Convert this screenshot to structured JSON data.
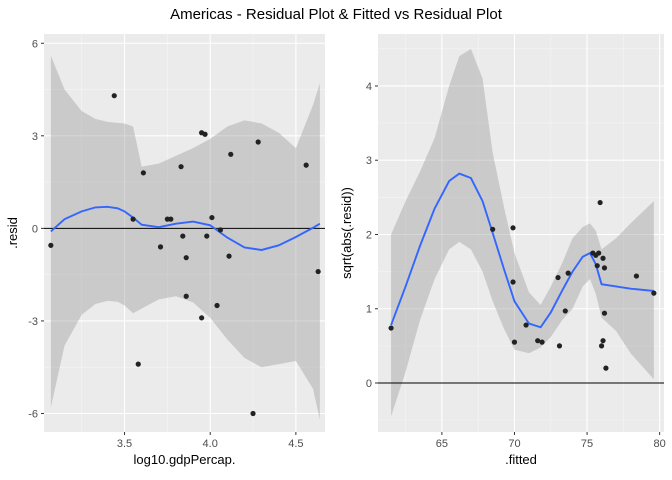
{
  "title": "Americas -  Residual Plot & Fitted vs Residual Plot",
  "chart_data": [
    {
      "type": "scatter",
      "xlabel": "log10.gdpPercap.",
      "ylabel": ".resid",
      "xlim": [
        3.03,
        4.67
      ],
      "ylim": [
        -6.6,
        6.3
      ],
      "xticks": [
        3.5,
        4.0,
        4.5
      ],
      "xtick_labels": [
        "3.5",
        "4.0",
        "4.5"
      ],
      "yticks": [
        -6,
        -3,
        0,
        3,
        6
      ],
      "ytick_labels": [
        "-6",
        "-3",
        "0",
        "3",
        "6"
      ],
      "hline": 0,
      "grid": true,
      "points": {
        "x": [
          3.07,
          3.44,
          3.55,
          3.58,
          3.61,
          3.71,
          3.75,
          3.77,
          3.83,
          3.84,
          3.86,
          3.86,
          3.95,
          3.95,
          3.97,
          3.98,
          4.01,
          4.04,
          4.06,
          4.11,
          4.12,
          4.25,
          4.28,
          4.56,
          4.63
        ],
        "y": [
          -0.55,
          4.3,
          0.3,
          -4.4,
          1.8,
          -0.6,
          0.3,
          0.3,
          2.0,
          -0.25,
          -2.2,
          -0.95,
          3.1,
          -2.9,
          3.05,
          -0.25,
          0.35,
          -2.5,
          -0.05,
          -0.9,
          2.4,
          -6.0,
          2.8,
          2.05,
          -1.4
        ]
      },
      "smooth": {
        "x": [
          3.07,
          3.15,
          3.25,
          3.33,
          3.4,
          3.46,
          3.5,
          3.55,
          3.6,
          3.7,
          3.8,
          3.9,
          4.0,
          4.1,
          4.2,
          4.3,
          4.4,
          4.5,
          4.6,
          4.64
        ],
        "y": [
          -0.1,
          0.3,
          0.55,
          0.68,
          0.7,
          0.65,
          0.55,
          0.35,
          0.12,
          0.04,
          0.15,
          0.22,
          0.1,
          -0.3,
          -0.62,
          -0.7,
          -0.55,
          -0.28,
          0.02,
          0.15
        ],
        "lower": [
          -5.8,
          -3.8,
          -2.8,
          -2.45,
          -2.35,
          -2.38,
          -2.5,
          -2.75,
          -2.6,
          -2.3,
          -2.2,
          -2.4,
          -2.9,
          -3.6,
          -4.2,
          -4.5,
          -4.4,
          -4.3,
          -5.2,
          -6.2
        ],
        "upper": [
          5.6,
          4.5,
          3.8,
          3.55,
          3.45,
          3.42,
          3.4,
          3.3,
          2.0,
          2.1,
          2.35,
          2.6,
          2.9,
          3.3,
          3.5,
          3.4,
          3.1,
          2.6,
          4.0,
          4.7
        ]
      }
    },
    {
      "type": "scatter",
      "xlabel": ".fitted",
      "ylabel": "sqrt(abs(.resid))",
      "xlim": [
        60.6,
        80.3
      ],
      "ylim": [
        -0.66,
        4.7
      ],
      "xticks": [
        65,
        70,
        75,
        80
      ],
      "xtick_labels": [
        "65",
        "70",
        "75",
        "80"
      ],
      "yticks": [
        0,
        1,
        2,
        3,
        4
      ],
      "ytick_labels": [
        "0",
        "1",
        "2",
        "3",
        "4"
      ],
      "hline": 0,
      "grid": true,
      "points": {
        "x": [
          61.5,
          68.5,
          69.9,
          69.9,
          70.0,
          70.8,
          71.6,
          71.9,
          73.0,
          73.1,
          73.5,
          73.7,
          75.4,
          75.6,
          75.7,
          75.8,
          75.9,
          76.0,
          76.1,
          76.1,
          76.2,
          76.2,
          76.3,
          78.4,
          79.6
        ],
        "y": [
          0.74,
          2.07,
          2.09,
          1.36,
          0.55,
          0.78,
          0.57,
          0.55,
          1.42,
          0.5,
          0.97,
          1.48,
          1.75,
          1.72,
          1.58,
          1.75,
          2.43,
          0.5,
          1.68,
          0.57,
          0.94,
          1.55,
          0.2,
          1.44,
          1.21
        ]
      },
      "smooth": {
        "x": [
          61.5,
          62.5,
          63.5,
          64.5,
          65.5,
          66.2,
          67.0,
          67.8,
          68.5,
          69.3,
          70.0,
          71.0,
          71.8,
          72.5,
          73.3,
          74.0,
          74.7,
          75.2,
          75.6,
          76.0,
          77.0,
          78.0,
          79.6
        ],
        "y": [
          0.78,
          1.3,
          1.85,
          2.35,
          2.72,
          2.82,
          2.76,
          2.45,
          2.02,
          1.52,
          1.1,
          0.8,
          0.75,
          0.95,
          1.25,
          1.5,
          1.7,
          1.75,
          1.6,
          1.33,
          1.3,
          1.27,
          1.24
        ],
        "lower": [
          -0.45,
          0.15,
          0.85,
          1.4,
          1.8,
          1.9,
          1.8,
          1.5,
          1.1,
          0.72,
          0.45,
          0.4,
          0.48,
          0.62,
          0.85,
          1.0,
          1.3,
          1.4,
          1.2,
          0.88,
          0.7,
          0.4,
          0.05
        ],
        "upper": [
          2.0,
          2.45,
          2.85,
          3.3,
          4.0,
          4.4,
          4.5,
          4.1,
          3.1,
          2.35,
          1.75,
          1.22,
          1.05,
          1.3,
          1.62,
          1.95,
          2.1,
          2.15,
          2.05,
          1.8,
          1.95,
          2.15,
          2.45
        ]
      }
    }
  ]
}
